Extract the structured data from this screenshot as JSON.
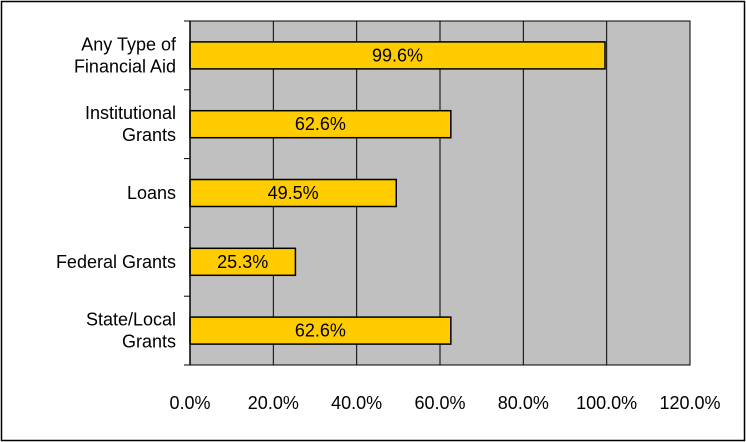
{
  "chart_data": {
    "type": "bar",
    "orientation": "horizontal",
    "categories": [
      [
        "Any Type of",
        "Financial Aid"
      ],
      [
        "Institutional",
        "Grants"
      ],
      [
        "Loans"
      ],
      [
        "Federal Grants"
      ],
      [
        "State/Local",
        "Grants"
      ]
    ],
    "values": [
      99.6,
      62.6,
      49.5,
      25.3,
      62.6
    ],
    "data_labels": [
      "99.6%",
      "62.6%",
      "49.5%",
      "25.3%",
      "62.6%"
    ],
    "xlim": [
      0,
      120
    ],
    "x_ticks": [
      0,
      20,
      40,
      60,
      80,
      100,
      120
    ],
    "x_tick_labels": [
      "0.0%",
      "20.0%",
      "40.0%",
      "60.0%",
      "80.0%",
      "100.0%",
      "120.0%"
    ],
    "grid": "vertical",
    "legend": "none",
    "colors": {
      "bar_fill": "#FFCC00",
      "bar_stroke": "#000000",
      "plot_background": "#C0C0C0",
      "grid": "#000000",
      "frame": "#000000",
      "page_background": "#FFFFFF"
    }
  }
}
